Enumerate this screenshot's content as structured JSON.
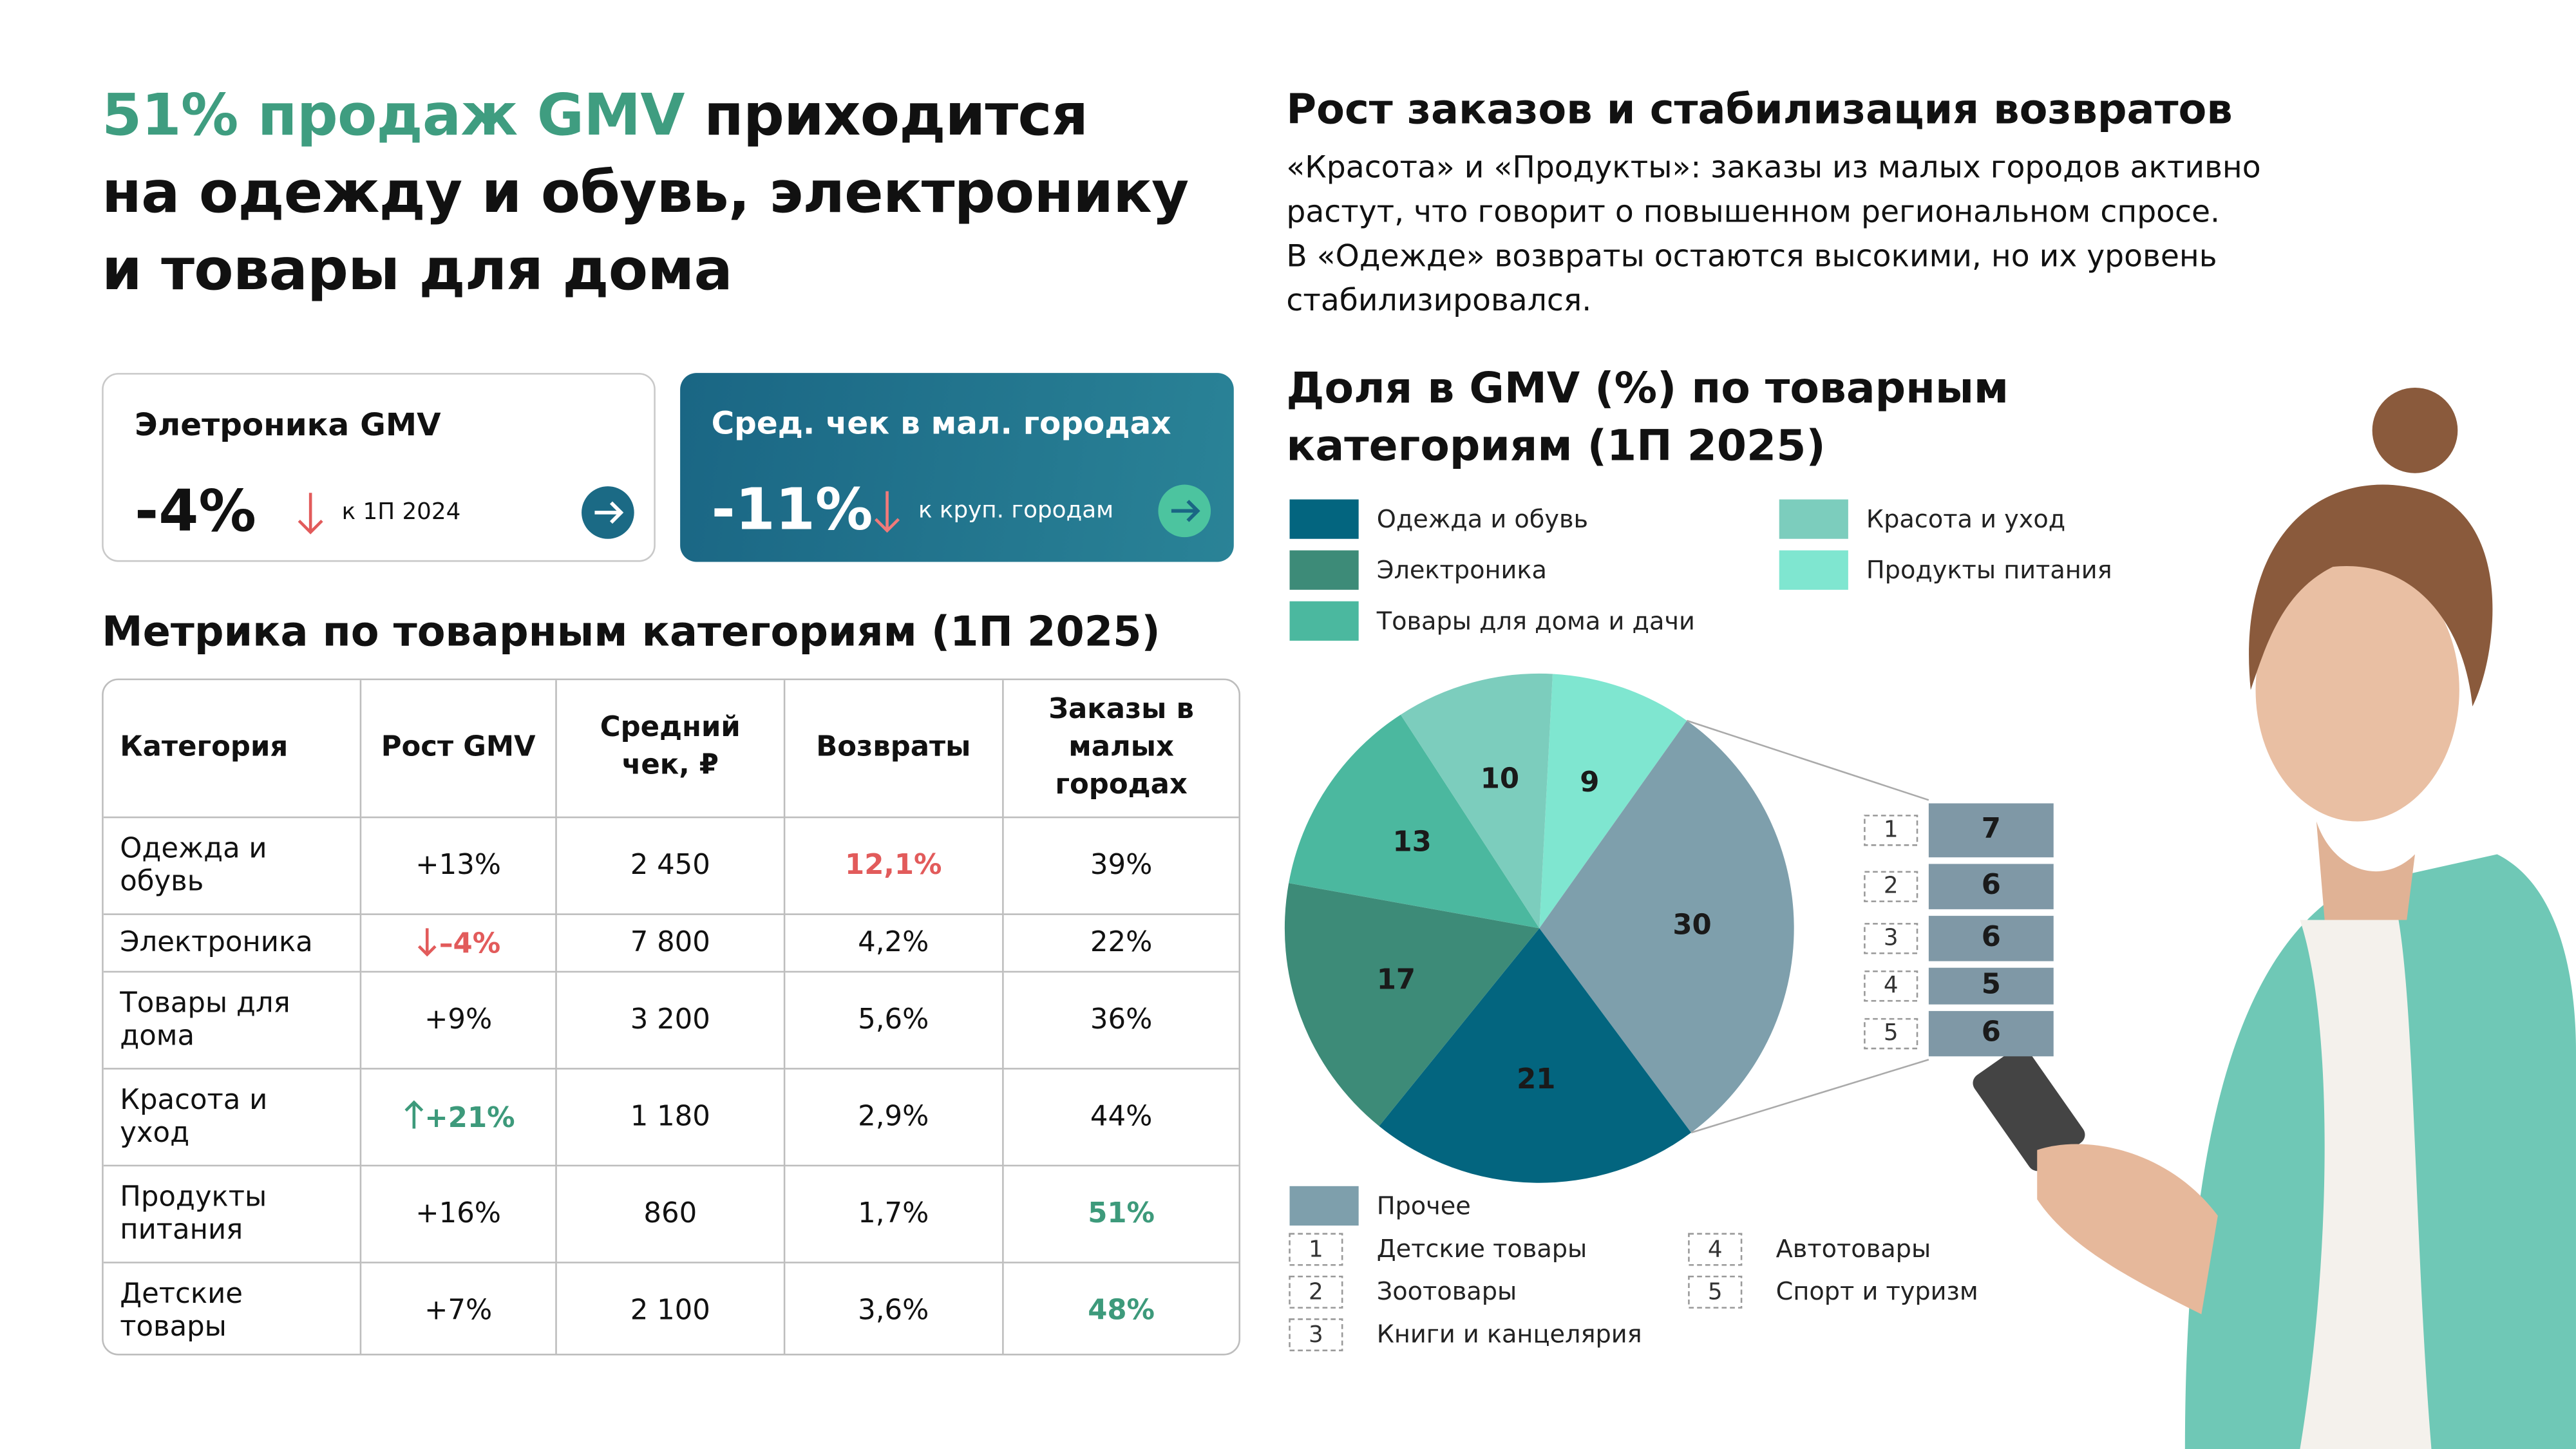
{
  "headline": {
    "accent": "51% продаж GMV",
    "lines": [
      "приходится",
      "на одежду и обувь, электронику",
      "и товары для дома"
    ]
  },
  "cards": [
    {
      "title": "Элетроника GMV",
      "value": "-4%",
      "note": "к 1П 2024"
    },
    {
      "title": "Сред. чек в мал. городах",
      "value": "-11%",
      "note": "к круп. городам"
    }
  ],
  "table": {
    "title": "Метрика по товарным категориям (1П 2025)",
    "header": [
      "Категория",
      "Рост GMV",
      "Средний чек, ₽",
      "Возвраты",
      "Заказы в малых городах"
    ],
    "rows": [
      [
        "Одежда и обувь",
        "+13%",
        "2 450",
        "12,1%",
        "39%"
      ],
      [
        "Электроника",
        "–4%",
        "7 800",
        "4,2%",
        "22%"
      ],
      [
        "Товары для дома",
        "+9%",
        "3 200",
        "5,6%",
        "36%"
      ],
      [
        "Красота и уход",
        "+21%",
        "1 180",
        "2,9%",
        "44%"
      ],
      [
        "Продукты питания",
        "+16%",
        "860",
        "1,7%",
        "51%"
      ],
      [
        "Детские товары",
        "+7%",
        "2 100",
        "3,6%",
        "48%"
      ]
    ]
  },
  "insight": {
    "title": "Рост заказов и стабилизация возвратов",
    "paragraphs": [
      "«Красота» и «Продукты»: заказы из малых городов активно растут, что говорит о повышенном региональном спросе.",
      "В «Одежде» возвраты остаются высокими, но их уровень стабилизировался."
    ]
  },
  "chart_data": {
    "type": "pie",
    "title": "Доля в GMV (%) по товарным категориям (1П 2025)",
    "categories": [
      "Продукты питания",
      "Прочее",
      "Одежда и обувь",
      "Электроника",
      "Товары для дома и дачи",
      "Красота и уход"
    ],
    "values": [
      9,
      30,
      21,
      17,
      13,
      10
    ],
    "colors": [
      "#7fe6d0",
      "#7e9fac",
      "#03657f",
      "#3d8b78",
      "#4bb89f",
      "#7ccdbd"
    ],
    "breakdown": {
      "of": "Прочее",
      "keys": [
        "1",
        "2",
        "3",
        "4",
        "5"
      ],
      "categories": [
        "Детские товары",
        "Зоотовары",
        "Книги и канцелярия",
        "Автотовары",
        "Спорт и туризм"
      ],
      "values": [
        7,
        6,
        6,
        5,
        6
      ],
      "color": "#7f98a6"
    }
  }
}
